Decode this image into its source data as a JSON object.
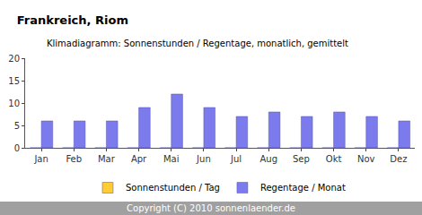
{
  "chart_data": {
    "type": "bar",
    "title": "Frankreich, Riom",
    "subtitle": "Klimadiagramm: Sonnenstunden / Regentage, monatlich, gemittelt",
    "categories": [
      "Jan",
      "Feb",
      "Mar",
      "Apr",
      "Mai",
      "Jun",
      "Jul",
      "Aug",
      "Sep",
      "Okt",
      "Nov",
      "Dez"
    ],
    "series": [
      {
        "name": "Sonnenstunden / Tag",
        "color": "#ffcc33",
        "values": [
          0,
          0,
          0,
          0,
          0,
          0,
          0,
          0,
          0,
          0,
          0,
          0
        ]
      },
      {
        "name": "Regentage / Monat",
        "color": "#7b7bee",
        "values": [
          6,
          6,
          6,
          9,
          12,
          9,
          7,
          8,
          7,
          8,
          7,
          6
        ]
      }
    ],
    "ylim": [
      0,
      20
    ],
    "yticks": [
      0,
      5,
      10,
      15,
      20
    ],
    "grid": false,
    "legend": "bottom",
    "annotations": [
      "Copyright (C) 2010 sonnenlaender.de"
    ]
  }
}
